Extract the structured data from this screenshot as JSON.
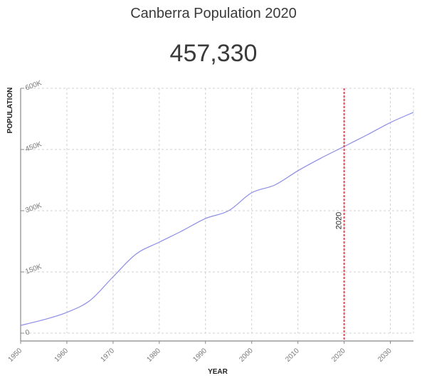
{
  "header": {
    "title": "Canberra Population 2020",
    "value": "457,330"
  },
  "chart_data": {
    "type": "line",
    "title": "Canberra Population 2020",
    "highlight_value": "457,330",
    "xlabel": "YEAR",
    "ylabel": "POPULATION",
    "xlim": [
      1950,
      2035
    ],
    "ylim": [
      0,
      600000
    ],
    "x_ticks": [
      "1950",
      "1960",
      "1970",
      "1980",
      "1990",
      "2000",
      "2010",
      "2020",
      "2030"
    ],
    "y_ticks": [
      "0",
      "150K",
      "300K",
      "450K",
      "600K"
    ],
    "grid": true,
    "line_color": "#8c8ce6",
    "marker": {
      "x": 2020,
      "label": "2020",
      "color": "#e8474f"
    },
    "x": [
      1950,
      1955,
      1960,
      1965,
      1970,
      1975,
      1980,
      1985,
      1990,
      1995,
      2000,
      2005,
      2010,
      2015,
      2020,
      2025,
      2030,
      2035
    ],
    "series": [
      {
        "name": "Population",
        "values": [
          19000,
          33000,
          51000,
          80000,
          138000,
          194000,
          223000,
          251000,
          281000,
          300000,
          344000,
          363000,
          398000,
          429000,
          457330,
          486000,
          516000,
          541000
        ]
      }
    ]
  }
}
